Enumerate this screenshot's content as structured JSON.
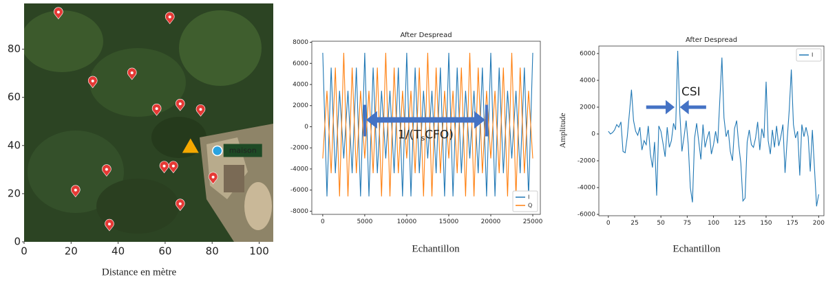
{
  "chart_data": [
    {
      "type": "scatter",
      "xlabel": "Distance en mètre",
      "x": [
        14.6,
        62,
        45.9,
        29.2,
        56.4,
        66.4,
        75.1,
        35.1,
        59.6,
        63.5,
        80.4,
        21.9,
        66.4,
        36.3
      ],
      "y": [
        95.4,
        93.4,
        70.2,
        66.8,
        55.3,
        57.3,
        55,
        30.1,
        31.5,
        31.5,
        26.9,
        21.5,
        15.8,
        7.4
      ],
      "color": "#e53935",
      "highlight": {
        "x": 70.8,
        "y": 39.5,
        "color": "#f5a800"
      },
      "annotation": {
        "text": "maison",
        "x": 82.2,
        "y": 37.8
      },
      "xlim": [
        0,
        106
      ],
      "ylim": [
        0,
        99
      ],
      "xticks": [
        0,
        20,
        40,
        60,
        80,
        100
      ],
      "yticks": [
        0,
        20,
        40,
        60,
        80
      ]
    },
    {
      "type": "line",
      "title": "After Despread",
      "xlabel": "Echantillon",
      "x": [
        0,
        500,
        1000,
        1500,
        2000,
        2500,
        3000,
        3500,
        4000,
        4500,
        5000,
        5500,
        6000,
        6500,
        7000,
        7500,
        8000,
        8500,
        9000,
        9500,
        10000,
        10500,
        11000,
        11500,
        12000,
        12500,
        13000,
        13500,
        14000,
        14500,
        15000,
        15500,
        16000,
        16500,
        17000,
        17500,
        18000,
        18500,
        19000,
        19500,
        20000,
        20500,
        21000,
        21500,
        22000,
        22500,
        23000,
        23500,
        24000,
        24500,
        25000
      ],
      "series": [
        {
          "name": "I",
          "color": "#1f77b4",
          "values": [
            7000,
            -6600,
            5600,
            -4400,
            3400,
            -3000,
            3400,
            -4400,
            5600,
            -6600,
            7000,
            -6600,
            5600,
            -4400,
            3400,
            -3000,
            3400,
            -4400,
            5600,
            -6600,
            7000,
            -6600,
            5600,
            -4400,
            3400,
            -3000,
            3400,
            -4400,
            5600,
            -6600,
            7000,
            -6600,
            5600,
            -4400,
            3400,
            -3000,
            3400,
            -4400,
            5600,
            -6600,
            7000,
            -6600,
            5600,
            -4400,
            3400,
            -3000,
            3400,
            -4400,
            5600,
            -6600,
            7000
          ]
        },
        {
          "name": "Q",
          "color": "#ff7f0e",
          "values": [
            -3000,
            3400,
            -4400,
            5600,
            -6600,
            7000,
            -6600,
            5600,
            -4400,
            3400,
            -3000,
            3400,
            -4400,
            5600,
            -6600,
            7000,
            -6600,
            5600,
            -4400,
            3400,
            -3000,
            3400,
            -4400,
            5600,
            -6600,
            7000,
            -6600,
            5600,
            -4400,
            3400,
            -3000,
            3400,
            -4400,
            5600,
            -6600,
            7000,
            -6600,
            5600,
            -4400,
            3400,
            -3000,
            3400,
            -4400,
            5600,
            -6600,
            7000,
            -6600,
            5600,
            -4400,
            3400,
            -3000
          ]
        }
      ],
      "legend": "lower right",
      "annotation": {
        "text": "1/(T",
        "subscript": "s",
        "text_end": "CFO)",
        "x_start": 5000,
        "x_end": 19500,
        "y": 0,
        "color": "#4472c4"
      },
      "xlim": [
        -1300,
        25900
      ],
      "ylim": [
        -8300,
        8100
      ],
      "xticks": [
        0,
        5000,
        10000,
        15000,
        20000,
        25000
      ],
      "yticks": [
        -8000,
        -6000,
        -4000,
        -2000,
        0,
        2000,
        4000,
        6000,
        8000
      ]
    },
    {
      "type": "line",
      "title": "After Despread",
      "xlabel": "Echantillon",
      "ylabel": "Amplitude",
      "x": [
        0,
        2,
        4,
        6,
        8,
        10,
        12,
        14,
        16,
        18,
        20,
        22,
        24,
        26,
        28,
        30,
        32,
        34,
        36,
        38,
        40,
        42,
        44,
        46,
        48,
        50,
        52,
        54,
        56,
        58,
        60,
        62,
        64,
        66,
        68,
        70,
        72,
        74,
        76,
        78,
        80,
        82,
        84,
        86,
        88,
        90,
        92,
        94,
        96,
        98,
        100,
        102,
        104,
        106,
        108,
        110,
        112,
        114,
        116,
        118,
        120,
        122,
        124,
        126,
        128,
        130,
        132,
        134,
        136,
        138,
        140,
        142,
        144,
        146,
        148,
        150,
        152,
        154,
        156,
        158,
        160,
        162,
        164,
        166,
        168,
        170,
        172,
        174,
        176,
        178,
        180,
        182,
        184,
        186,
        188,
        190,
        192,
        194,
        196,
        198,
        200
      ],
      "series": [
        {
          "name": "I",
          "color": "#1f77b4",
          "values": [
            200,
            0,
            100,
            300,
            700,
            500,
            900,
            -1300,
            -1400,
            -200,
            1500,
            3300,
            1000,
            200,
            -100,
            500,
            -1200,
            -500,
            -800,
            600,
            -1500,
            -2500,
            -600,
            -4600,
            600,
            200,
            -700,
            -1700,
            500,
            -1000,
            -500,
            800,
            300,
            6200,
            1500,
            -1300,
            -200,
            1000,
            -800,
            -4000,
            -5100,
            -300,
            800,
            -600,
            -1900,
            700,
            -1000,
            -300,
            200,
            -1500,
            -800,
            200,
            -700,
            2500,
            5700,
            1200,
            -200,
            300,
            -1300,
            -2000,
            400,
            1000,
            -800,
            -2200,
            -5000,
            -4800,
            -600,
            300,
            -800,
            -1000,
            -300,
            900,
            -1200,
            400,
            -300,
            3900,
            -500,
            -1500,
            300,
            -1000,
            600,
            -900,
            -200,
            700,
            -2900,
            -500,
            1800,
            4800,
            700,
            -300,
            200,
            -3100,
            700,
            -200,
            500,
            -200,
            -2800,
            300,
            -2500,
            -5400,
            -4500
          ]
        }
      ],
      "legend": "upper right",
      "annotation": {
        "text": "CSI",
        "x_left": [
          36,
          63
        ],
        "x_right": [
          93,
          68
        ],
        "y": 2000,
        "color": "#4472c4"
      },
      "xlim": [
        -9,
        205
      ],
      "ylim": [
        -6100,
        6560
      ],
      "xticks": [
        0,
        25,
        50,
        75,
        100,
        125,
        150,
        175,
        200
      ],
      "yticks": [
        -6000,
        -4000,
        -2000,
        0,
        2000,
        4000,
        6000
      ]
    }
  ]
}
